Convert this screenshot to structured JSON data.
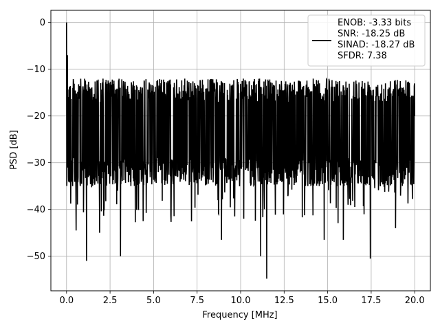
{
  "chart_data": {
    "type": "line",
    "title": "",
    "xlabel": "Frequency [MHz]",
    "ylabel": "PSD [dB]",
    "xlim": [
      -0.9,
      20.9
    ],
    "ylim": [
      -57.4,
      2.6
    ],
    "xticks": [
      0.0,
      2.5,
      5.0,
      7.5,
      10.0,
      12.5,
      15.0,
      17.5,
      20.0
    ],
    "xtick_labels": [
      "0.0",
      "2.5",
      "5.0",
      "7.5",
      "10.0",
      "12.5",
      "15.0",
      "17.5",
      "20.0"
    ],
    "yticks": [
      0,
      -10,
      -20,
      -30,
      -40,
      -50
    ],
    "ytick_labels": [
      "0",
      "−10",
      "−20",
      "−30",
      "−40",
      "−50"
    ],
    "grid": true,
    "legend_position": "upper-right",
    "legend_entries": [
      "ENOB: -3.33 bits",
      "SNR: -18.25 dB",
      "SINAD: -18.27 dB",
      "SFDR: 7.38"
    ],
    "series": [
      {
        "name": "ENOB: -3.33 bits\nSNR: -18.25 dB\nSINAD: -18.27 dB\nSFDR: 7.38",
        "color": "#000000",
        "description": "noise-like power spectral density, roughly uniform between about -12 dB and -35 dB across 0–20 MHz, with a peak of 0 dB at 0 MHz and deep nulls",
        "x_range": [
          0.0,
          20.0
        ],
        "band_upper_db": -12,
        "band_lower_db": -35,
        "peak": {
          "x": 0.0,
          "y": 0.0
        },
        "notable_points": [
          {
            "x": 0.0,
            "y": 0.0
          },
          {
            "x": 0.05,
            "y": -7
          },
          {
            "x": 0.1,
            "y": -23
          },
          {
            "x": 0.35,
            "y": -35
          },
          {
            "x": 0.55,
            "y": -44.5
          },
          {
            "x": 1.15,
            "y": -51
          },
          {
            "x": 1.9,
            "y": -45
          },
          {
            "x": 3.1,
            "y": -50
          },
          {
            "x": 4.4,
            "y": -42.5
          },
          {
            "x": 8.9,
            "y": -46.5
          },
          {
            "x": 11.15,
            "y": -50
          },
          {
            "x": 11.5,
            "y": -54.8
          },
          {
            "x": 14.8,
            "y": -46.5
          },
          {
            "x": 15.9,
            "y": -46.5
          },
          {
            "x": 17.45,
            "y": -50.5
          },
          {
            "x": 18.9,
            "y": -44
          },
          {
            "x": 20.0,
            "y": -20
          }
        ]
      }
    ]
  }
}
